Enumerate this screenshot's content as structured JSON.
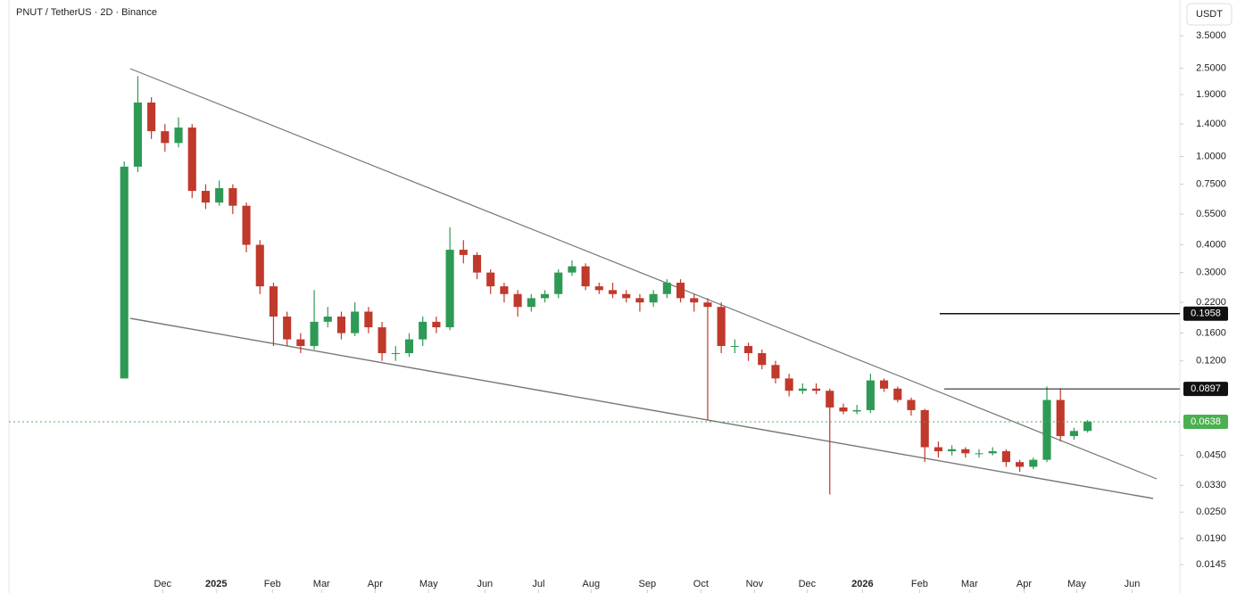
{
  "chart_data": {
    "type": "candlestick",
    "title": "PNUT / TetherUS · 2D · Binance",
    "currency_button": "USDT",
    "log_scale": true,
    "up_color": "#2e9a55",
    "down_color": "#c0392b",
    "ylim": [
      0.0108,
      5.07
    ],
    "yticks": [
      {
        "value": 3.5,
        "label": "3.5000"
      },
      {
        "value": 2.5,
        "label": "2.5000"
      },
      {
        "value": 1.9,
        "label": "1.9000"
      },
      {
        "value": 1.4,
        "label": "1.4000"
      },
      {
        "value": 1.0,
        "label": "1.0000"
      },
      {
        "value": 0.75,
        "label": "0.7500"
      },
      {
        "value": 0.55,
        "label": "0.5500"
      },
      {
        "value": 0.4,
        "label": "0.4000"
      },
      {
        "value": 0.3,
        "label": "0.3000"
      },
      {
        "value": 0.22,
        "label": "0.2200"
      },
      {
        "value": 0.16,
        "label": "0.1600"
      },
      {
        "value": 0.12,
        "label": "0.1200"
      },
      {
        "value": 0.045,
        "label": "0.0450"
      },
      {
        "value": 0.033,
        "label": "0.0330"
      },
      {
        "value": 0.025,
        "label": "0.0250"
      },
      {
        "value": 0.019,
        "label": "0.0190"
      },
      {
        "value": 0.0145,
        "label": "0.0145"
      }
    ],
    "xlim": [
      -8.5,
      77.8
    ],
    "xticks": [
      {
        "value": 2.83,
        "label": "Dec"
      },
      {
        "value": 6.78,
        "label": "2025"
      },
      {
        "value": 10.92,
        "label": "Feb"
      },
      {
        "value": 14.54,
        "label": "Mar"
      },
      {
        "value": 18.49,
        "label": "Apr"
      },
      {
        "value": 22.43,
        "label": "May"
      },
      {
        "value": 26.58,
        "label": "Jun"
      },
      {
        "value": 30.53,
        "label": "Jul"
      },
      {
        "value": 34.41,
        "label": "Aug"
      },
      {
        "value": 38.55,
        "label": "Sep"
      },
      {
        "value": 42.5,
        "label": "Oct"
      },
      {
        "value": 46.45,
        "label": "Nov"
      },
      {
        "value": 50.33,
        "label": "Dec"
      },
      {
        "value": 54.41,
        "label": "2026"
      },
      {
        "value": 58.62,
        "label": "Feb"
      },
      {
        "value": 62.3,
        "label": "Mar"
      },
      {
        "value": 66.32,
        "label": "Apr"
      },
      {
        "value": 70.2,
        "label": "May"
      },
      {
        "value": 74.28,
        "label": "Jun"
      }
    ],
    "ohlc": [
      [
        0.1,
        0.95,
        0.1,
        0.9
      ],
      [
        0.9,
        2.3,
        0.85,
        1.75
      ],
      [
        1.75,
        1.85,
        1.2,
        1.3
      ],
      [
        1.3,
        1.4,
        1.05,
        1.15
      ],
      [
        1.15,
        1.5,
        1.1,
        1.35
      ],
      [
        1.35,
        1.4,
        0.65,
        0.7
      ],
      [
        0.7,
        0.75,
        0.58,
        0.62
      ],
      [
        0.62,
        0.78,
        0.6,
        0.72
      ],
      [
        0.72,
        0.75,
        0.55,
        0.6
      ],
      [
        0.6,
        0.62,
        0.37,
        0.4
      ],
      [
        0.4,
        0.42,
        0.24,
        0.26
      ],
      [
        0.26,
        0.27,
        0.14,
        0.19
      ],
      [
        0.19,
        0.2,
        0.14,
        0.15
      ],
      [
        0.15,
        0.16,
        0.13,
        0.14
      ],
      [
        0.14,
        0.25,
        0.135,
        0.18
      ],
      [
        0.18,
        0.21,
        0.17,
        0.19
      ],
      [
        0.19,
        0.2,
        0.15,
        0.16
      ],
      [
        0.16,
        0.22,
        0.155,
        0.2
      ],
      [
        0.2,
        0.21,
        0.16,
        0.17
      ],
      [
        0.17,
        0.18,
        0.12,
        0.13
      ],
      [
        0.13,
        0.14,
        0.12,
        0.13
      ],
      [
        0.13,
        0.16,
        0.125,
        0.15
      ],
      [
        0.15,
        0.19,
        0.14,
        0.18
      ],
      [
        0.18,
        0.19,
        0.16,
        0.17
      ],
      [
        0.17,
        0.48,
        0.165,
        0.38
      ],
      [
        0.38,
        0.42,
        0.33,
        0.36
      ],
      [
        0.36,
        0.37,
        0.28,
        0.3
      ],
      [
        0.3,
        0.31,
        0.24,
        0.26
      ],
      [
        0.26,
        0.27,
        0.22,
        0.24
      ],
      [
        0.24,
        0.25,
        0.19,
        0.21
      ],
      [
        0.21,
        0.24,
        0.2,
        0.23
      ],
      [
        0.23,
        0.25,
        0.22,
        0.24
      ],
      [
        0.24,
        0.31,
        0.23,
        0.3
      ],
      [
        0.3,
        0.34,
        0.29,
        0.32
      ],
      [
        0.32,
        0.33,
        0.25,
        0.26
      ],
      [
        0.26,
        0.27,
        0.24,
        0.25
      ],
      [
        0.25,
        0.27,
        0.23,
        0.24
      ],
      [
        0.24,
        0.25,
        0.22,
        0.23
      ],
      [
        0.23,
        0.24,
        0.2,
        0.22
      ],
      [
        0.22,
        0.25,
        0.21,
        0.24
      ],
      [
        0.24,
        0.28,
        0.23,
        0.27
      ],
      [
        0.27,
        0.28,
        0.22,
        0.23
      ],
      [
        0.23,
        0.24,
        0.2,
        0.22
      ],
      [
        0.22,
        0.23,
        0.065,
        0.21
      ],
      [
        0.21,
        0.22,
        0.13,
        0.14
      ],
      [
        0.14,
        0.15,
        0.13,
        0.14
      ],
      [
        0.14,
        0.145,
        0.12,
        0.13
      ],
      [
        0.13,
        0.135,
        0.11,
        0.115
      ],
      [
        0.115,
        0.12,
        0.095,
        0.1
      ],
      [
        0.1,
        0.105,
        0.083,
        0.088
      ],
      [
        0.088,
        0.095,
        0.085,
        0.09
      ],
      [
        0.09,
        0.095,
        0.085,
        0.088
      ],
      [
        0.088,
        0.09,
        0.03,
        0.074
      ],
      [
        0.074,
        0.077,
        0.069,
        0.071
      ],
      [
        0.071,
        0.076,
        0.069,
        0.072
      ],
      [
        0.072,
        0.105,
        0.07,
        0.098
      ],
      [
        0.098,
        0.1,
        0.087,
        0.09
      ],
      [
        0.09,
        0.092,
        0.078,
        0.08
      ],
      [
        0.08,
        0.082,
        0.068,
        0.072
      ],
      [
        0.072,
        0.073,
        0.042,
        0.049
      ],
      [
        0.049,
        0.052,
        0.044,
        0.047
      ],
      [
        0.047,
        0.05,
        0.045,
        0.048
      ],
      [
        0.048,
        0.049,
        0.044,
        0.046
      ],
      [
        0.046,
        0.048,
        0.044,
        0.046
      ],
      [
        0.046,
        0.049,
        0.045,
        0.047
      ],
      [
        0.047,
        0.048,
        0.04,
        0.042
      ],
      [
        0.042,
        0.043,
        0.038,
        0.04
      ],
      [
        0.04,
        0.044,
        0.039,
        0.043
      ],
      [
        0.043,
        0.092,
        0.042,
        0.08
      ],
      [
        0.08,
        0.09,
        0.052,
        0.055
      ],
      [
        0.055,
        0.06,
        0.053,
        0.058
      ],
      [
        0.058,
        0.065,
        0.057,
        0.064
      ]
    ],
    "price_levels": [
      {
        "value": 0.1958,
        "color": "#111111"
      },
      {
        "value": 0.0897,
        "color": "#111111"
      },
      {
        "value": 0.0638,
        "color": "#4caf50"
      }
    ]
  }
}
